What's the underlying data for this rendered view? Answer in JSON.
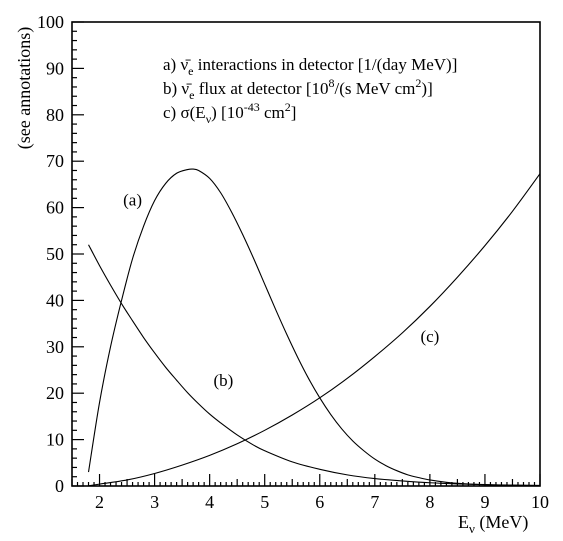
{
  "chart_data": {
    "type": "line",
    "xlabel": "E",
    "xlabel_sub": "ν",
    "xlabel_unit": " (MeV)",
    "ylabel": "(see annotations)",
    "xlim": [
      1.5,
      10
    ],
    "ylim": [
      0,
      100
    ],
    "x_ticks": [
      2,
      3,
      4,
      5,
      6,
      7,
      8,
      9,
      10
    ],
    "y_ticks": [
      0,
      10,
      20,
      30,
      40,
      50,
      60,
      70,
      80,
      90,
      100
    ],
    "grid": false,
    "legend_entries": [
      {
        "prefix": "a) ",
        "symbol": "ν̄",
        "sub": "e",
        "text": " interactions in detector [1/(day MeV)]"
      },
      {
        "prefix": "b) ",
        "symbol": "ν̄",
        "sub": "e",
        "text": " flux at detector [10",
        "sup": "8",
        "text2": "/(s MeV cm",
        "sup2": "2",
        "text3": ")]"
      },
      {
        "prefix": "c) ",
        "symbol": "σ(E",
        "sub": "ν",
        "text": ") [10",
        "sup": "-43",
        "text2": " cm",
        "sup2": "2",
        "text3": "]"
      }
    ],
    "series": [
      {
        "name": "(a)",
        "x": [
          1.8,
          2.0,
          2.2,
          2.4,
          2.6,
          2.8,
          3.0,
          3.2,
          3.4,
          3.6,
          3.7,
          3.8,
          4.0,
          4.2,
          4.4,
          4.6,
          4.8,
          5.0,
          5.2,
          5.4,
          5.6,
          5.8,
          6.0,
          6.2,
          6.4,
          6.6,
          6.8,
          7.0,
          7.2,
          7.4,
          7.6,
          7.8,
          8.0,
          8.3,
          8.6,
          9.0,
          9.5,
          10.0
        ],
        "y": [
          3,
          18,
          30,
          40,
          49,
          56,
          61.5,
          65.2,
          67.4,
          68.2,
          68.3,
          68.0,
          66.3,
          63.2,
          59.0,
          54.2,
          49.0,
          43.5,
          38.0,
          32.7,
          27.7,
          23.1,
          19.0,
          15.4,
          12.3,
          9.7,
          7.6,
          5.8,
          4.4,
          3.3,
          2.4,
          1.8,
          1.3,
          0.8,
          0.5,
          0.25,
          0.1,
          0.05
        ]
      },
      {
        "name": "(b)",
        "x": [
          1.8,
          2.0,
          2.2,
          2.4,
          2.6,
          2.8,
          3.0,
          3.2,
          3.4,
          3.6,
          3.8,
          4.0,
          4.2,
          4.5,
          4.8,
          5.0,
          5.5,
          6.0,
          6.5,
          7.0,
          7.5,
          8.0,
          8.5,
          9.0,
          9.5,
          10.0
        ],
        "y": [
          52,
          47.5,
          43.3,
          39.3,
          35.6,
          32.0,
          28.7,
          25.6,
          22.8,
          20.1,
          17.7,
          15.5,
          13.6,
          11.0,
          8.8,
          7.6,
          5.2,
          3.6,
          2.4,
          1.6,
          1.1,
          0.7,
          0.45,
          0.3,
          0.2,
          0.12
        ]
      },
      {
        "name": "(c)",
        "x": [
          1.8,
          2.0,
          2.5,
          3.0,
          3.5,
          4.0,
          4.5,
          5.0,
          5.5,
          6.0,
          6.5,
          7.0,
          7.5,
          8.0,
          8.5,
          9.0,
          9.5,
          10.0
        ],
        "y": [
          0.05,
          0.4,
          1.3,
          2.7,
          4.5,
          6.6,
          9.1,
          12.0,
          15.3,
          19.0,
          23.2,
          27.9,
          33.0,
          38.7,
          45.0,
          51.8,
          59.2,
          67.3
        ]
      }
    ],
    "curve_labels": [
      {
        "name": "(a)",
        "x": 2.6,
        "y": 60.5
      },
      {
        "name": "(b)",
        "x": 4.25,
        "y": 21.5
      },
      {
        "name": "(c)",
        "x": 8.0,
        "y": 31.0
      }
    ]
  }
}
